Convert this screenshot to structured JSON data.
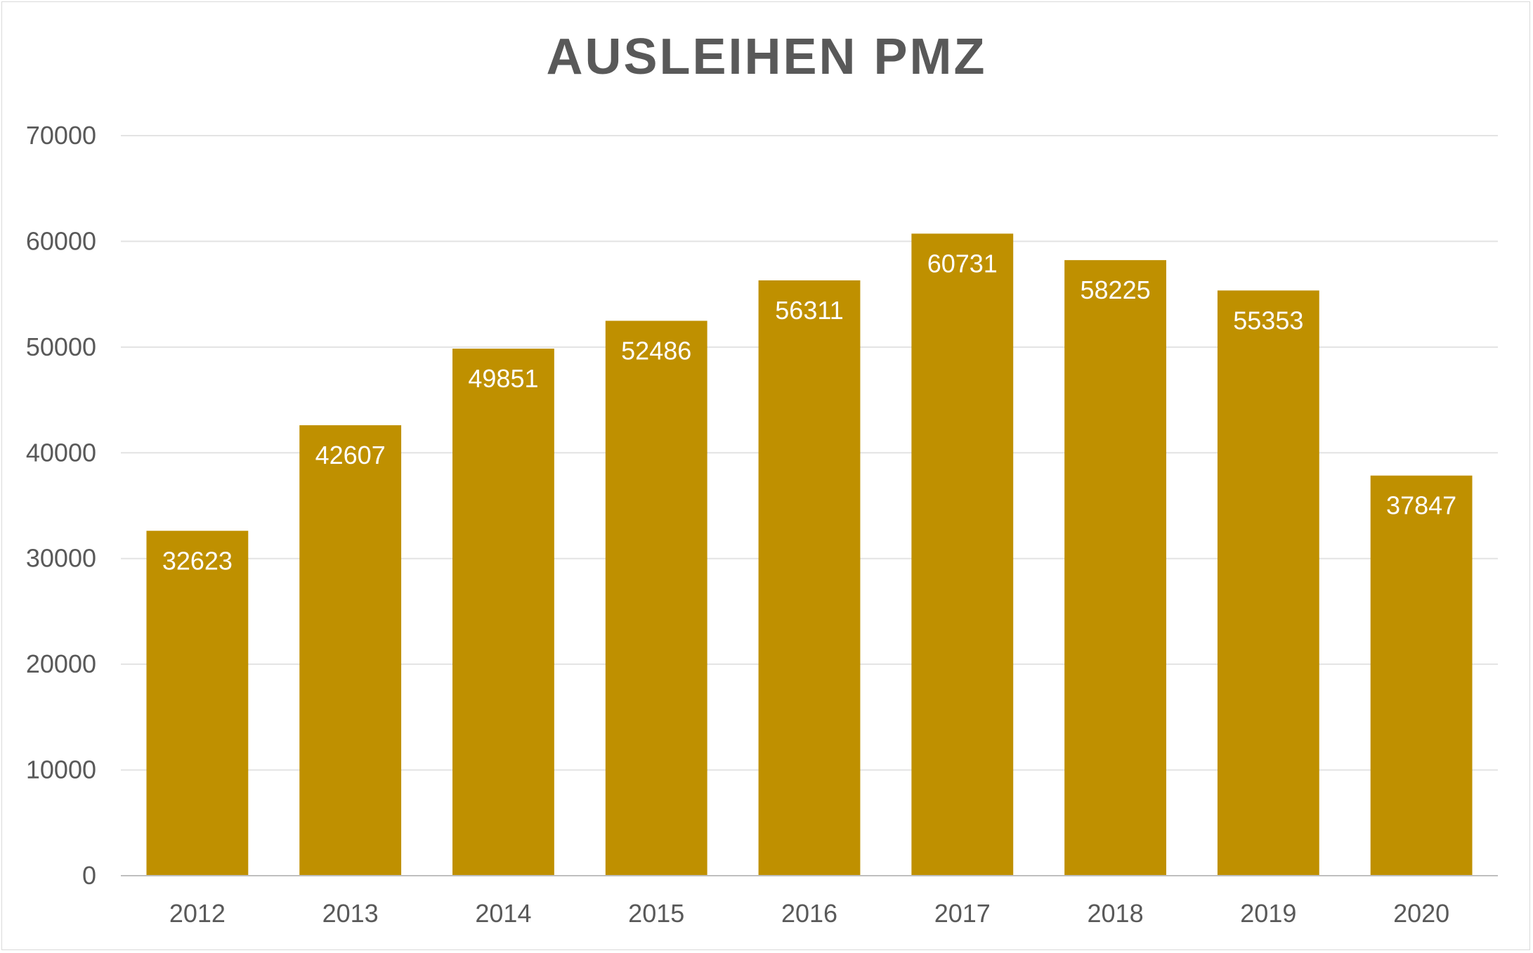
{
  "chart_data": {
    "type": "bar",
    "title": "AUSLEIHEN PMZ",
    "xlabel": "",
    "ylabel": "",
    "categories": [
      "2012",
      "2013",
      "2014",
      "2015",
      "2016",
      "2017",
      "2018",
      "2019",
      "2020"
    ],
    "values": [
      32623,
      42607,
      49851,
      52486,
      56311,
      60731,
      58225,
      55353,
      37847
    ],
    "ylim": [
      0,
      70000
    ],
    "yticks": [
      0,
      10000,
      20000,
      30000,
      40000,
      50000,
      60000,
      70000
    ],
    "grid": true,
    "legend": "none",
    "data_labels": "inside-end",
    "bar_color": "#BF9000",
    "gridline_color": "#e3e3e3",
    "axis_color": "#bfbfbf",
    "text_color": "#595959"
  }
}
